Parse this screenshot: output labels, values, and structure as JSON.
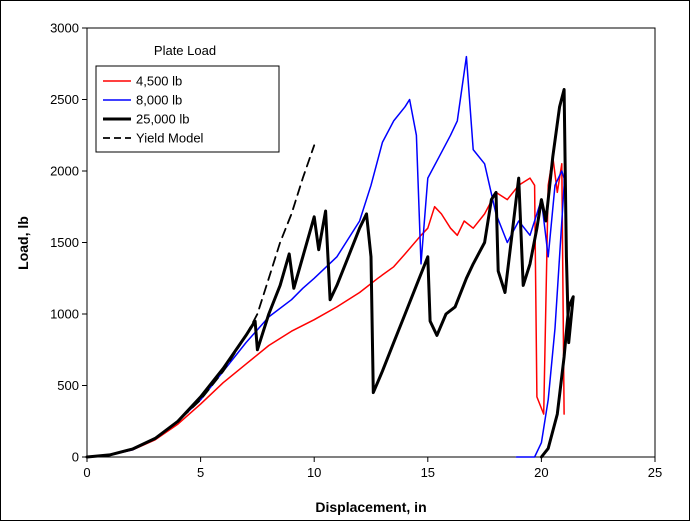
{
  "chart_data": {
    "type": "line",
    "xlabel": "Displacement, in",
    "ylabel": "Load, lb",
    "xlim": [
      0,
      25
    ],
    "ylim": [
      0,
      3000
    ],
    "xticks": [
      0,
      5,
      10,
      15,
      20,
      25
    ],
    "yticks": [
      0,
      500,
      1000,
      1500,
      2000,
      2500,
      3000
    ],
    "grid": false,
    "legend": {
      "title": "Plate Load",
      "placement": "top-left",
      "entries": [
        "4,500 lb",
        "8,000 lb",
        "25,000 lb",
        "Yield Model"
      ]
    },
    "series": [
      {
        "name": "4,500 lb",
        "color": "#ff0000",
        "style": "solid",
        "points": [
          [
            0,
            0
          ],
          [
            1,
            15
          ],
          [
            2,
            50
          ],
          [
            3,
            120
          ],
          [
            4,
            230
          ],
          [
            5,
            370
          ],
          [
            6,
            520
          ],
          [
            7,
            650
          ],
          [
            8,
            780
          ],
          [
            9,
            880
          ],
          [
            10,
            960
          ],
          [
            11,
            1050
          ],
          [
            12,
            1150
          ],
          [
            12.8,
            1250
          ],
          [
            13.5,
            1330
          ],
          [
            14,
            1420
          ],
          [
            14.7,
            1550
          ],
          [
            15,
            1600
          ],
          [
            15.3,
            1750
          ],
          [
            15.6,
            1700
          ],
          [
            16,
            1600
          ],
          [
            16.3,
            1550
          ],
          [
            16.6,
            1650
          ],
          [
            17,
            1600
          ],
          [
            17.5,
            1700
          ],
          [
            18,
            1850
          ],
          [
            18.5,
            1800
          ],
          [
            19,
            1900
          ],
          [
            19.5,
            1950
          ],
          [
            19.7,
            1900
          ],
          [
            19.8,
            420
          ],
          [
            20.1,
            300
          ],
          [
            20.3,
            1900
          ],
          [
            20.5,
            2100
          ],
          [
            20.7,
            1850
          ],
          [
            20.9,
            2050
          ],
          [
            21,
            300
          ]
        ]
      },
      {
        "name": "8,000 lb",
        "color": "#0000ff",
        "style": "solid",
        "points": [
          [
            0,
            0
          ],
          [
            1,
            15
          ],
          [
            2,
            50
          ],
          [
            3,
            130
          ],
          [
            4,
            250
          ],
          [
            5,
            400
          ],
          [
            6,
            600
          ],
          [
            7,
            800
          ],
          [
            8,
            980
          ],
          [
            9,
            1100
          ],
          [
            9.5,
            1180
          ],
          [
            10,
            1250
          ],
          [
            11,
            1400
          ],
          [
            12,
            1650
          ],
          [
            12.5,
            1900
          ],
          [
            13,
            2200
          ],
          [
            13.5,
            2350
          ],
          [
            14,
            2450
          ],
          [
            14.2,
            2500
          ],
          [
            14.5,
            2250
          ],
          [
            14.7,
            1350
          ],
          [
            15,
            1950
          ],
          [
            15.5,
            2100
          ],
          [
            16,
            2250
          ],
          [
            16.3,
            2350
          ],
          [
            16.7,
            2800
          ],
          [
            17,
            2150
          ],
          [
            17.5,
            2050
          ],
          [
            18,
            1700
          ],
          [
            18.5,
            1500
          ],
          [
            19,
            1650
          ],
          [
            19.5,
            1550
          ],
          [
            20,
            1800
          ],
          [
            20.3,
            1400
          ],
          [
            20.6,
            1900
          ],
          [
            20.9,
            2000
          ],
          [
            21,
            1950
          ],
          [
            21,
            1900
          ],
          [
            20.6,
            900
          ],
          [
            20.3,
            400
          ],
          [
            20,
            100
          ],
          [
            19.7,
            0
          ],
          [
            19.2,
            0
          ],
          [
            18.9,
            0
          ]
        ]
      },
      {
        "name": "25,000 lb",
        "color": "#000000",
        "style": "solid",
        "points": [
          [
            0,
            0
          ],
          [
            1,
            15
          ],
          [
            2,
            55
          ],
          [
            3,
            130
          ],
          [
            4,
            250
          ],
          [
            5,
            420
          ],
          [
            6,
            620
          ],
          [
            7,
            850
          ],
          [
            7.4,
            950
          ],
          [
            7.5,
            750
          ],
          [
            8,
            1000
          ],
          [
            8.5,
            1200
          ],
          [
            8.9,
            1420
          ],
          [
            9.1,
            1180
          ],
          [
            9.5,
            1400
          ],
          [
            10,
            1680
          ],
          [
            10.2,
            1450
          ],
          [
            10.5,
            1720
          ],
          [
            10.7,
            1100
          ],
          [
            11,
            1200
          ],
          [
            11.5,
            1400
          ],
          [
            12,
            1600
          ],
          [
            12.3,
            1700
          ],
          [
            12.5,
            1400
          ],
          [
            12.6,
            450
          ],
          [
            13,
            600
          ],
          [
            13.5,
            800
          ],
          [
            14,
            1000
          ],
          [
            14.5,
            1200
          ],
          [
            15,
            1400
          ],
          [
            15.1,
            950
          ],
          [
            15.4,
            850
          ],
          [
            15.8,
            1000
          ],
          [
            16.2,
            1050
          ],
          [
            16.7,
            1250
          ],
          [
            17,
            1350
          ],
          [
            17.5,
            1500
          ],
          [
            17.8,
            1800
          ],
          [
            18,
            1850
          ],
          [
            18.1,
            1300
          ],
          [
            18.4,
            1150
          ],
          [
            18.7,
            1550
          ],
          [
            19,
            1950
          ],
          [
            19.2,
            1200
          ],
          [
            19.5,
            1350
          ],
          [
            19.8,
            1600
          ],
          [
            20,
            1800
          ],
          [
            20.2,
            1650
          ],
          [
            20.5,
            2100
          ],
          [
            20.8,
            2450
          ],
          [
            21,
            2570
          ],
          [
            21.1,
            1400
          ],
          [
            21.2,
            800
          ],
          [
            21.4,
            1120
          ],
          [
            21.2,
            1050
          ],
          [
            21,
            700
          ],
          [
            20.7,
            300
          ],
          [
            20.3,
            60
          ],
          [
            20,
            0
          ]
        ]
      },
      {
        "name": "Yield Model",
        "color": "#000000",
        "style": "dashed",
        "points": [
          [
            0,
            0
          ],
          [
            1,
            15
          ],
          [
            2,
            55
          ],
          [
            3,
            130
          ],
          [
            4,
            250
          ],
          [
            5,
            400
          ],
          [
            6,
            600
          ],
          [
            7,
            850
          ],
          [
            7.5,
            1000
          ],
          [
            8,
            1250
          ],
          [
            8.5,
            1500
          ],
          [
            9,
            1700
          ],
          [
            9.5,
            1950
          ],
          [
            10,
            2180
          ]
        ]
      }
    ]
  }
}
